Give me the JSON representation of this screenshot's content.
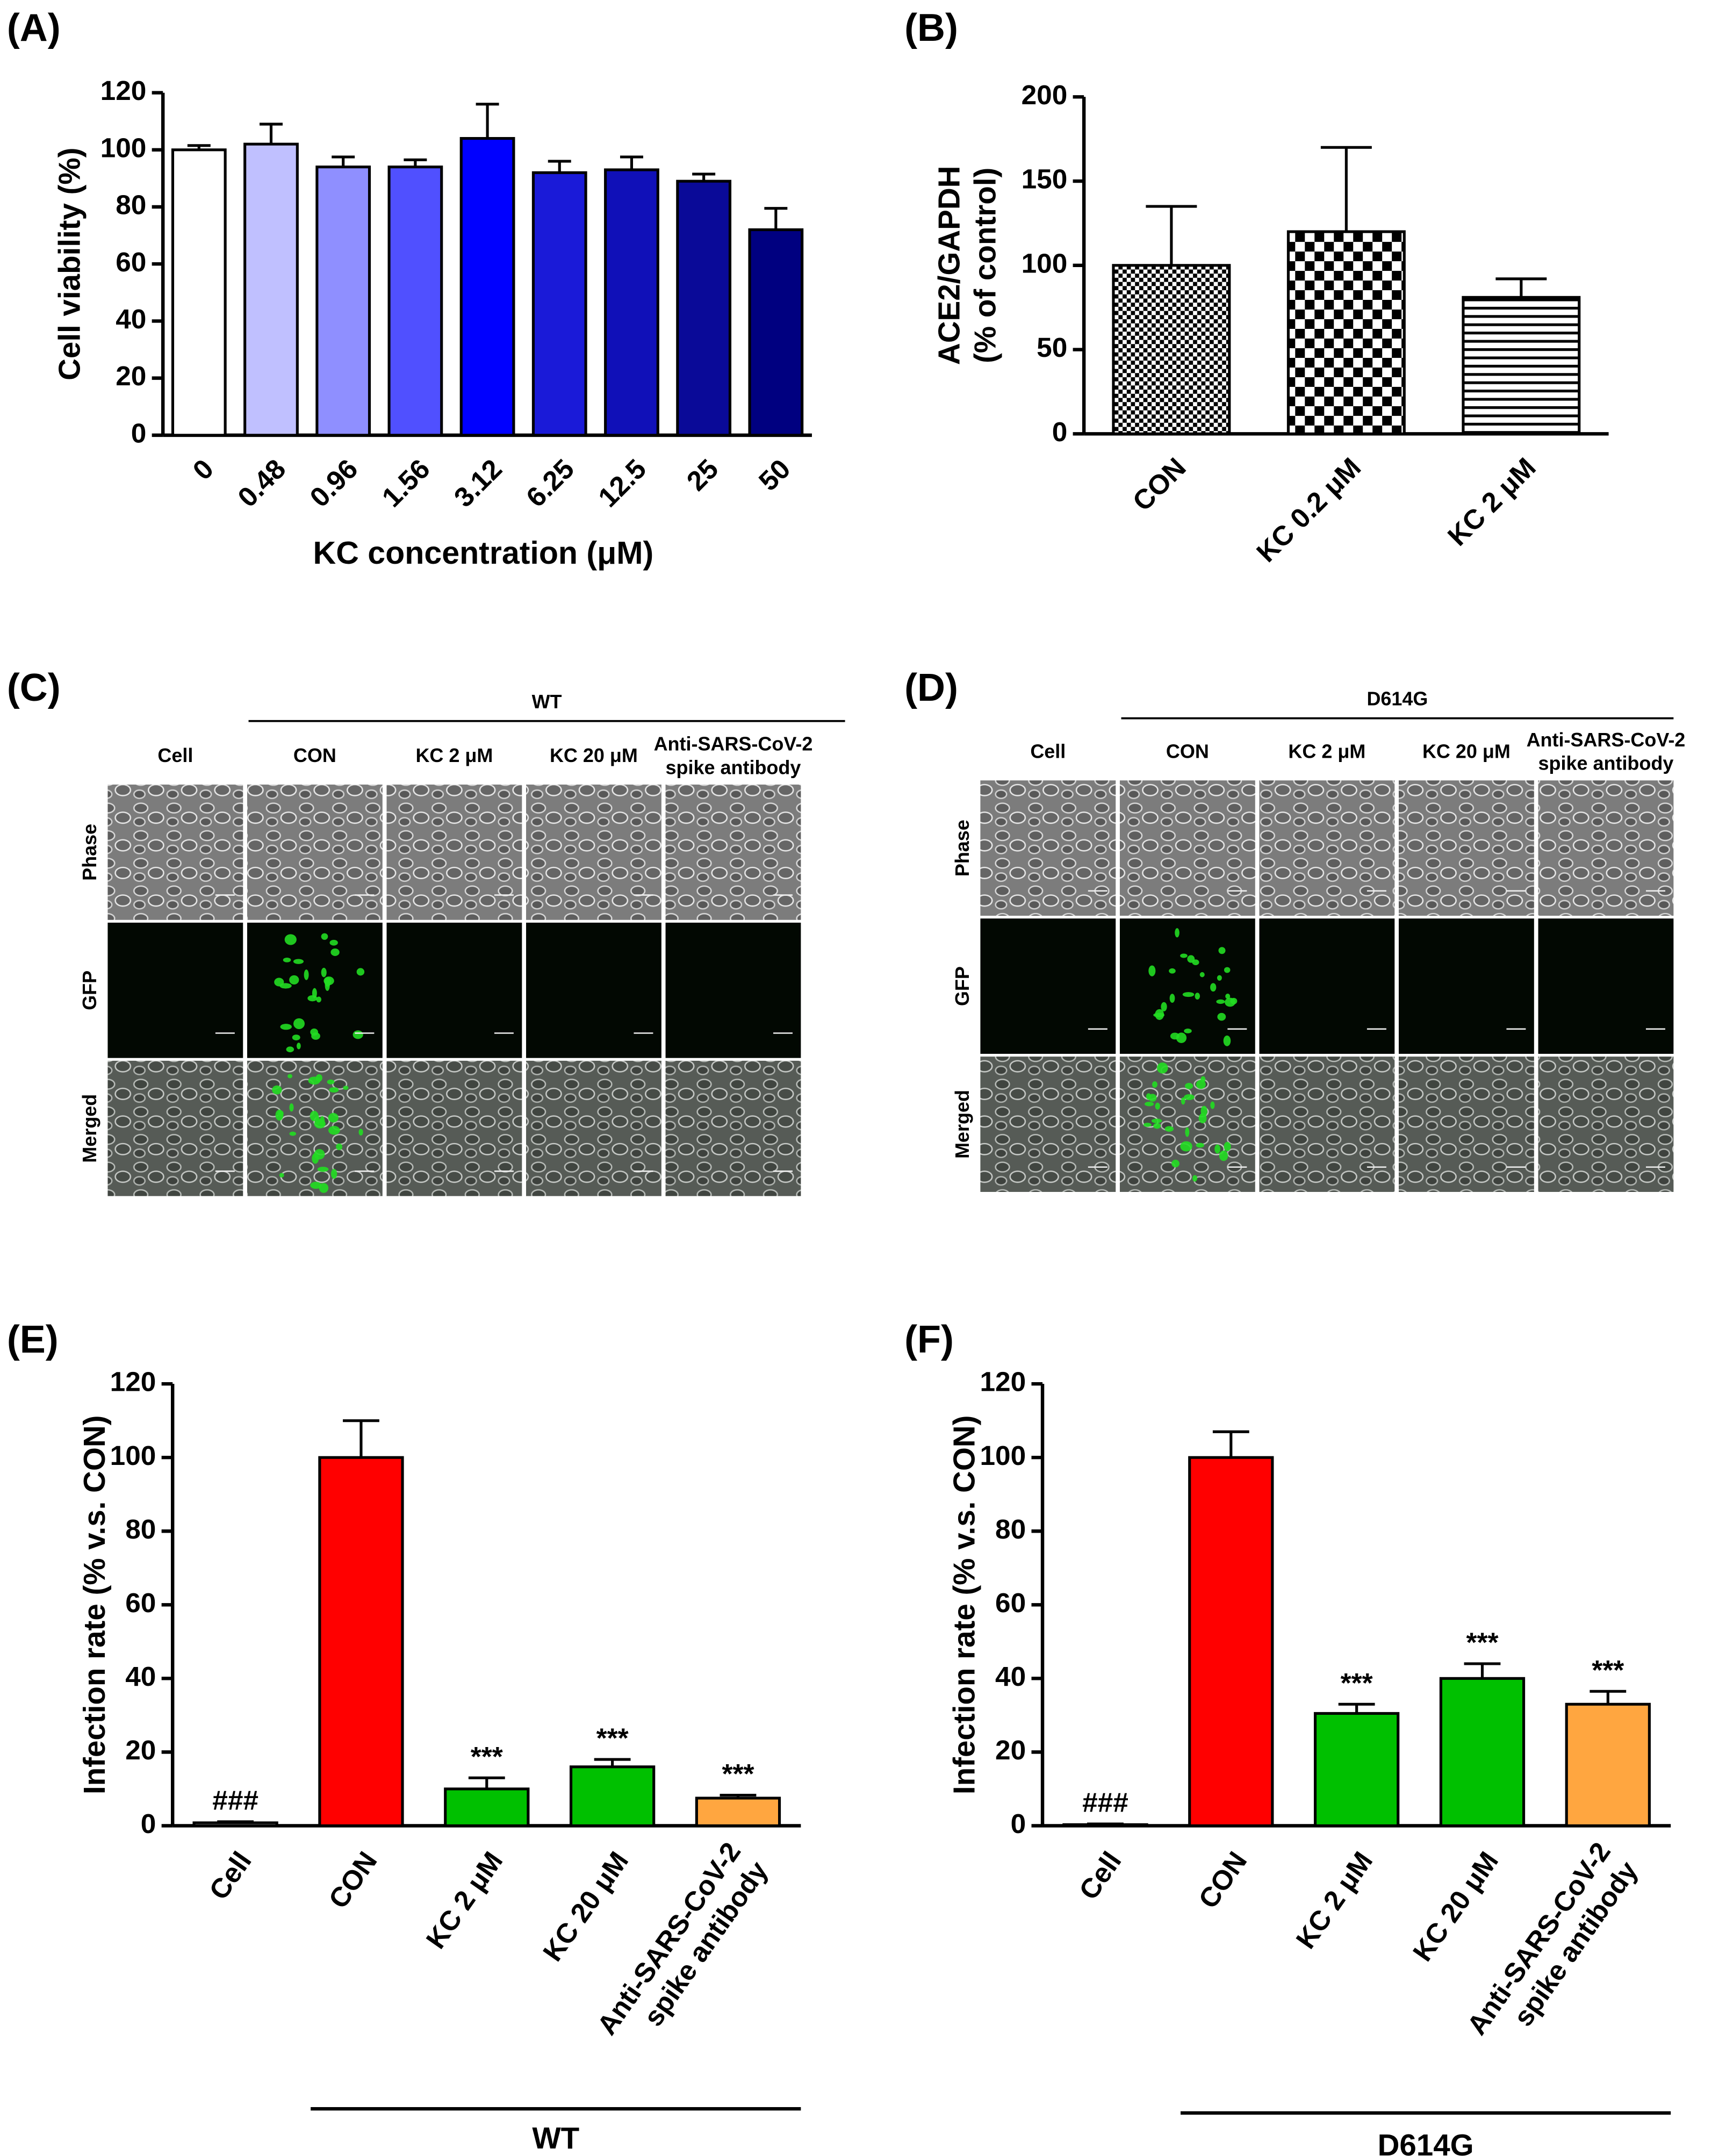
{
  "chart_data": [
    {
      "type": "bar",
      "label": "(A)",
      "ylabel": "Cell viability (%)",
      "xlabel": "KC concentration (μM)",
      "categories": [
        "0",
        "0.48",
        "0.96",
        "1.56",
        "3.12",
        "6.25",
        "12.5",
        "25",
        "50"
      ],
      "values": [
        100,
        102,
        94,
        94,
        104,
        92,
        93,
        89,
        72
      ],
      "errors": [
        1.5,
        7,
        3.5,
        2.5,
        12,
        4,
        4.5,
        2.5,
        7.5
      ],
      "colors": [
        "#ffffff",
        "#c0c0ff",
        "#8f8fff",
        "#5050ff",
        "#0000ff",
        "#1a1ad8",
        "#1010b8",
        "#0a0a98",
        "#000080"
      ],
      "ylim": [
        0,
        120
      ],
      "yticks": [
        0,
        20,
        40,
        60,
        80,
        100,
        120
      ]
    },
    {
      "type": "bar",
      "label": "(B)",
      "ylabel": [
        "ACE2/GAPDH",
        "(% of control)"
      ],
      "categories": [
        "CON",
        "KC 0.2 μM",
        "KC 2 μM"
      ],
      "values": [
        100,
        120,
        81
      ],
      "errors": [
        35,
        50,
        11
      ],
      "patterns": [
        "dots",
        "checker",
        "hlines"
      ],
      "ylim": [
        0,
        200
      ],
      "yticks": [
        0,
        50,
        100,
        150,
        200
      ]
    },
    {
      "type": "bar",
      "label": "(E)",
      "ylabel": "Infection rate (% v.s. CON)",
      "group_label": "WT",
      "categories": [
        "Cell",
        "CON",
        "KC 2 μM",
        "KC 20 μM",
        [
          "Anti-SARS-CoV-2",
          "spike antibody"
        ]
      ],
      "values": [
        0.8,
        100,
        10,
        16,
        7.5
      ],
      "errors": [
        0.3,
        10,
        3,
        2,
        0.8
      ],
      "significance": [
        "###",
        null,
        "***",
        "***",
        "***"
      ],
      "colors": [
        "#ffffff",
        "#ff0000",
        "#00c000",
        "#00c000",
        "#ffa640"
      ],
      "ylim": [
        0,
        120
      ],
      "yticks": [
        0,
        20,
        40,
        60,
        80,
        100,
        120
      ]
    },
    {
      "type": "bar",
      "label": "(F)",
      "ylabel": "Infection rate (% v.s. CON)",
      "group_label": "D614G",
      "categories": [
        "Cell",
        "CON",
        "KC 2 μM",
        "KC 20 μM",
        [
          "Anti-SARS-CoV-2",
          "spike antibody"
        ]
      ],
      "values": [
        0.3,
        100,
        30.5,
        40,
        33
      ],
      "errors": [
        0.2,
        7,
        2.5,
        4,
        3.5
      ],
      "significance": [
        "###",
        null,
        "***",
        "***",
        "***"
      ],
      "colors": [
        "#ffffff",
        "#ff0000",
        "#00c000",
        "#00c000",
        "#ffa640"
      ],
      "ylim": [
        0,
        120
      ],
      "yticks": [
        0,
        20,
        40,
        60,
        80,
        100,
        120
      ]
    }
  ],
  "micrographs": [
    {
      "label": "(C)",
      "group_label": "WT",
      "columns": [
        "Cell",
        "CON",
        "KC 2 μM",
        "KC 20 μM",
        [
          "Anti-SARS-CoV-2",
          "spike antibody"
        ]
      ],
      "rows": [
        "Phase",
        "GFP",
        "Merged"
      ]
    },
    {
      "label": "(D)",
      "group_label": "D614G",
      "columns": [
        "Cell",
        "CON",
        "KC 2 μM",
        "KC 20 μM",
        [
          "Anti-SARS-CoV-2",
          "spike antibody"
        ]
      ],
      "rows": [
        "Phase",
        "GFP",
        "Merged"
      ]
    }
  ]
}
